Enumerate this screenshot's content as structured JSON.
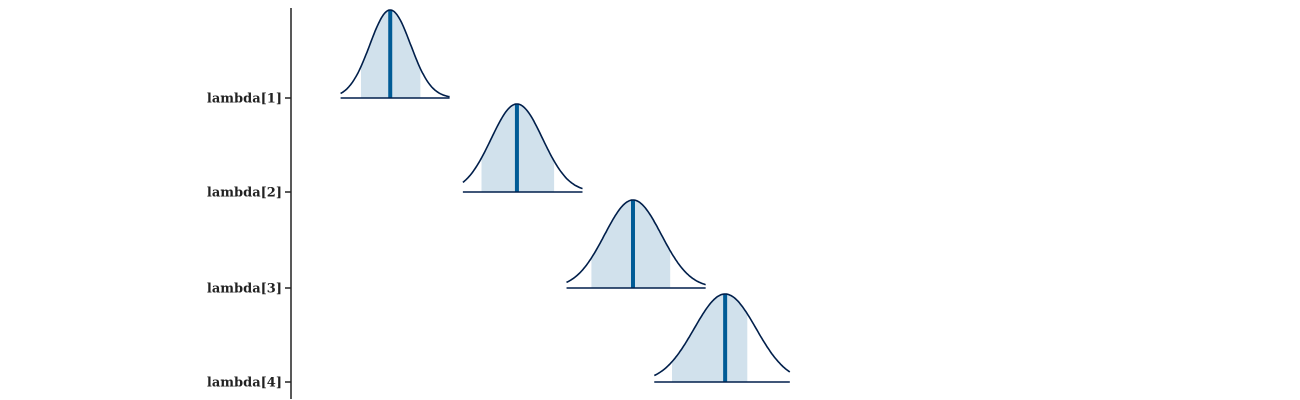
{
  "chart_data": {
    "type": "area",
    "title": "",
    "xlabel": "",
    "ylabel": "",
    "xlim": [
      0,
      100
    ],
    "grid": false,
    "legend": "none",
    "colors": {
      "outline": "#011f4b",
      "interval_fill": "#d1e1ec",
      "median_line": "#005b96",
      "axis": "#222222"
    },
    "series": [
      {
        "name": "lambda[1]",
        "median": 11.2,
        "interval": [
          7.9,
          14.6
        ],
        "range": [
          5.6,
          17.9
        ],
        "sd": 2.3
      },
      {
        "name": "lambda[2]",
        "median": 25.5,
        "interval": [
          21.5,
          29.7
        ],
        "range": [
          19.4,
          32.9
        ],
        "sd": 2.9
      },
      {
        "name": "lambda[3]",
        "median": 38.6,
        "interval": [
          33.9,
          42.8
        ],
        "range": [
          31.1,
          46.8
        ],
        "sd": 3.2
      },
      {
        "name": "lambda[4]",
        "median": 49.0,
        "interval": [
          43.0,
          51.5
        ],
        "range": [
          41.0,
          56.3
        ],
        "sd": 3.5
      }
    ]
  }
}
